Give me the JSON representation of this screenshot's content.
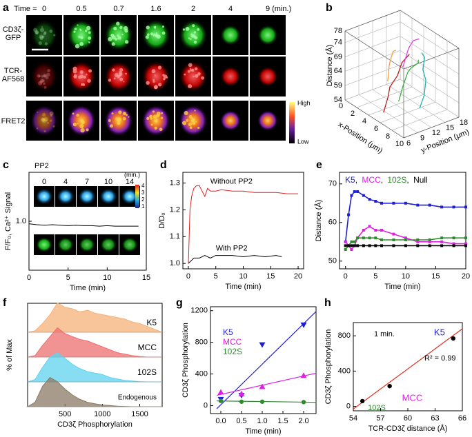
{
  "figure_a": {
    "panel": "a",
    "time_label": "Time =",
    "times": [
      0,
      0.5,
      0.7,
      1.6,
      2,
      4,
      9
    ],
    "time_unit": "(min.)",
    "rows": [
      "CD3ζ-GFP",
      "TCR-AF568",
      "FRET2"
    ],
    "colorbar_high": "High",
    "colorbar_low": "Low"
  },
  "chart_data": [
    {
      "panel": "b",
      "type": "line3d",
      "zlabel": "Distance (Å)",
      "xlabel": "x-Position (μm)",
      "ylabel": "y-Position (μm)",
      "xlim": [
        0,
        10
      ],
      "xticks": [
        0,
        2,
        4,
        6,
        8,
        10
      ],
      "ylim": [
        6,
        18
      ],
      "yticks": [
        6,
        9,
        12,
        15,
        18
      ],
      "zlim": [
        54,
        78
      ],
      "zticks": [
        54,
        59,
        64,
        69,
        74,
        78
      ],
      "series": [
        {
          "color": "#f4a040",
          "x": [
            1,
            1.5,
            2,
            3,
            3.5,
            4
          ],
          "y": [
            14,
            13.5,
            13,
            12,
            12,
            12
          ],
          "z": [
            57,
            60,
            64,
            68,
            72,
            73
          ]
        },
        {
          "color": "#b22222",
          "x": [
            5,
            5,
            4.5,
            5,
            5,
            5.5
          ],
          "y": [
            8,
            9,
            10,
            11,
            12,
            13
          ],
          "z": [
            55,
            60,
            62,
            66,
            70,
            73
          ]
        },
        {
          "color": "#3cb043",
          "x": [
            6,
            6,
            6,
            6.5,
            7,
            7
          ],
          "y": [
            10,
            11,
            12,
            12,
            13,
            13
          ],
          "z": [
            59,
            64,
            68,
            70,
            72,
            73
          ]
        },
        {
          "color": "#e040e0",
          "x": [
            2,
            2.5,
            3,
            3,
            3.5,
            4
          ],
          "y": [
            16,
            16,
            16,
            17,
            17,
            17
          ],
          "z": [
            62,
            66,
            70,
            72,
            73,
            74
          ]
        },
        {
          "color": "#20b2aa",
          "x": [
            8,
            8,
            7.5,
            7,
            6.5,
            6
          ],
          "y": [
            12,
            13,
            14,
            14,
            15,
            15
          ],
          "z": [
            58,
            62,
            66,
            69,
            72,
            73
          ]
        }
      ]
    },
    {
      "panel": "c",
      "type": "line",
      "ylabel": "F/F₀, Ca²⁺ Signal",
      "xlabel": "Time (min)",
      "xlim": [
        0,
        15
      ],
      "xticks": [
        0,
        5,
        10,
        15
      ],
      "ylim": [
        0,
        2
      ],
      "yticks": [
        {
          "value": 1,
          "label": "1.0"
        }
      ],
      "image_strip": {
        "label": "PP2",
        "times": [
          0,
          4,
          7,
          10,
          14
        ],
        "unit": "(min.)",
        "colorbar_ticks": [
          1,
          2,
          3,
          4
        ]
      },
      "series": [
        {
          "color": "#000000",
          "x": [
            0,
            1,
            2,
            3,
            4,
            5,
            6,
            7,
            8,
            9,
            10,
            11,
            12,
            13,
            14
          ],
          "values": [
            0.95,
            0.93,
            0.92,
            0.93,
            0.92,
            0.91,
            0.92,
            0.91,
            0.91,
            0.9,
            0.91,
            0.9,
            0.9,
            0.9,
            0.9
          ]
        }
      ]
    },
    {
      "panel": "d",
      "type": "line",
      "ylabel": "D/D₀",
      "xlabel": "Time (min)",
      "xlim": [
        -1,
        21
      ],
      "xticks": [
        0,
        5,
        10,
        15,
        20
      ],
      "ylim": [
        0.98,
        1.34
      ],
      "yticks": [
        {
          "value": 1,
          "label": "1.0"
        },
        1.1,
        1.2,
        1.3
      ],
      "series": [
        {
          "name": "Without PP2",
          "color": "#e02020",
          "x": [
            0,
            0.3,
            0.6,
            1,
            1.5,
            2,
            2.5,
            3,
            3.5,
            4,
            5,
            6,
            8,
            10,
            12,
            14,
            16,
            18,
            20
          ],
          "values": [
            1.0,
            1.2,
            1.25,
            1.28,
            1.29,
            1.29,
            1.27,
            1.25,
            1.28,
            1.27,
            1.27,
            1.275,
            1.27,
            1.27,
            1.265,
            1.265,
            1.265,
            1.26,
            1.26
          ]
        },
        {
          "name": "With PP2",
          "color": "#000000",
          "x": [
            0,
            0.5,
            1,
            2,
            3,
            4,
            5,
            6,
            8,
            10,
            12,
            14,
            16,
            17
          ],
          "values": [
            1.0,
            1.01,
            1.02,
            1.02,
            1.03,
            1.02,
            1.03,
            1.03,
            1.03,
            1.025,
            1.03,
            1.025,
            1.03,
            1.025
          ]
        }
      ]
    },
    {
      "panel": "e",
      "type": "line",
      "ylabel": "Distance (Å)",
      "xlabel": "Time (min)",
      "legend_separator": ", ",
      "xlim": [
        -1,
        20
      ],
      "xticks": [
        0,
        5,
        10,
        15,
        20
      ],
      "ylim": [
        48,
        73
      ],
      "yticks": [
        50,
        60,
        70
      ],
      "x": [
        0,
        0.5,
        1,
        1.5,
        2,
        3,
        4,
        5,
        6,
        8,
        10,
        12,
        14,
        16,
        18,
        20
      ],
      "series": [
        {
          "name": "K5",
          "color": "#1f1fd0",
          "values": [
            55,
            62,
            67,
            68,
            68,
            67,
            66,
            65.5,
            65,
            65,
            65,
            64.5,
            64.5,
            64,
            64,
            64
          ]
        },
        {
          "name": "MCC",
          "color": "#e020e0",
          "values": [
            55,
            54,
            53,
            54,
            56,
            58,
            59,
            58,
            58,
            57,
            56,
            55,
            55,
            55,
            54.5,
            54.5
          ]
        },
        {
          "name": "102S",
          "color": "#2e8b2e",
          "values": [
            53,
            54,
            55,
            55,
            56,
            56,
            56,
            56,
            55.5,
            55.5,
            55.5,
            55.5,
            55.5,
            56,
            56,
            56
          ]
        },
        {
          "name": "Null",
          "color": "#000000",
          "values": [
            54,
            54,
            54,
            54,
            54,
            54,
            54,
            54,
            54,
            54,
            54,
            54,
            54,
            54,
            54,
            54
          ]
        }
      ]
    },
    {
      "panel": "f",
      "type": "ridgeline",
      "xlabel": "CD3ζ  Phosphorylation",
      "ylabel": "% of Max",
      "xlim": [
        0,
        1800
      ],
      "xticks": [
        500,
        1000,
        1500
      ],
      "x": [
        0,
        100,
        200,
        300,
        400,
        500,
        600,
        700,
        800,
        900,
        1000,
        1100,
        1200,
        1300,
        1400,
        1500,
        1600,
        1700,
        1800
      ],
      "series": [
        {
          "name": "K5",
          "color": "#f5b27a",
          "values": [
            0,
            5,
            30,
            60,
            100,
            85,
            80,
            70,
            75,
            65,
            60,
            55,
            50,
            45,
            35,
            30,
            20,
            10,
            0
          ]
        },
        {
          "name": "MCC",
          "color": "#ee6f6f",
          "values": [
            0,
            5,
            40,
            70,
            100,
            80,
            70,
            60,
            55,
            45,
            35,
            25,
            15,
            10,
            5,
            2,
            0,
            0,
            0
          ]
        },
        {
          "name": "102S",
          "color": "#5fd3ef",
          "values": [
            0,
            8,
            50,
            85,
            100,
            80,
            60,
            45,
            35,
            30,
            25,
            15,
            10,
            5,
            3,
            1,
            0,
            0,
            0
          ]
        },
        {
          "name": "Endogenous",
          "color": "#8b7a66",
          "values": [
            0,
            15,
            70,
            100,
            85,
            60,
            40,
            25,
            15,
            10,
            6,
            4,
            2,
            1,
            0,
            0,
            0,
            0,
            0
          ]
        }
      ]
    },
    {
      "panel": "g",
      "type": "scatter",
      "ylabel": "CD3ζ Phosphorylation",
      "xlabel": "Time (min)",
      "xlim": [
        -0.25,
        2.3
      ],
      "xticks": [
        {
          "value": 0,
          "label": "0.0"
        },
        0.5,
        {
          "value": 1,
          "label": "1.0"
        },
        1.5,
        {
          "value": 2,
          "label": "2.0"
        }
      ],
      "ylim": [
        -100,
        1250
      ],
      "yticks": [
        0,
        400,
        800,
        1200
      ],
      "series": [
        {
          "name": "K5",
          "color": "#1f1fd0",
          "marker": "triangle-down",
          "x": [
            0,
            0.5,
            1,
            2
          ],
          "values": [
            80,
            130,
            770,
            1020
          ],
          "fit": {
            "x": [
              -0.1,
              2.3
            ],
            "values": [
              -40,
              1190
            ]
          }
        },
        {
          "name": "MCC",
          "color": "#e020e0",
          "marker": "triangle-up",
          "x": [
            0,
            0.5,
            1,
            2
          ],
          "values": [
            170,
            150,
            240,
            380
          ],
          "fit": {
            "x": [
              -0.1,
              2.3
            ],
            "values": [
              130,
              410
            ]
          }
        },
        {
          "name": "102S",
          "color": "#2e8b2e",
          "marker": "circle",
          "x": [
            0,
            0.5,
            1,
            2
          ],
          "values": [
            60,
            50,
            50,
            45
          ],
          "fit": {
            "x": [
              -0.1,
              2.3
            ],
            "values": [
              60,
              42
            ]
          }
        }
      ]
    },
    {
      "panel": "h",
      "type": "scatter",
      "ylabel": "CD3ζ Phosphorylation",
      "xlabel": "TCR-CD3ζ distance (Å)",
      "xlim": [
        54,
        66
      ],
      "xticks": [
        54,
        57,
        60,
        63,
        66
      ],
      "ylim": [
        -50,
        950
      ],
      "yticks": [
        0,
        400,
        800
      ],
      "annotations": [
        "1 min.",
        "R² = 0.99"
      ],
      "fit": {
        "x": [
          54,
          66
        ],
        "values": [
          -30,
          880
        ],
        "color": "#e03020"
      },
      "series": [
        {
          "color": "#000000",
          "marker": "circle",
          "x": [
            55,
            58,
            65
          ],
          "values": [
            60,
            230,
            770
          ],
          "labels": [
            "102S",
            "MCC",
            "K5"
          ],
          "label_colors": [
            "#2e8b2e",
            "#e020e0",
            "#1f1fd0"
          ]
        }
      ]
    }
  ]
}
